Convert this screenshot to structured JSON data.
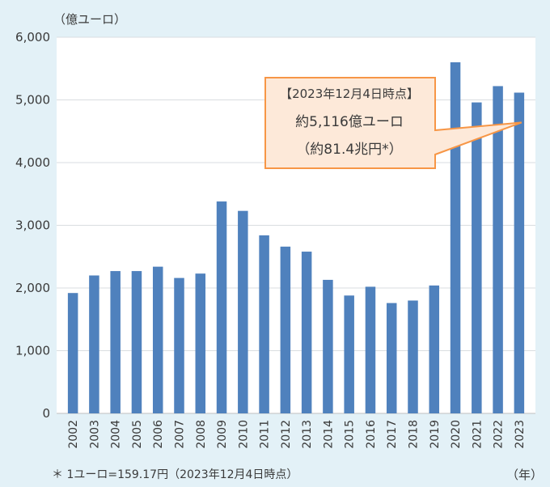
{
  "chart_data": {
    "type": "bar",
    "ylabel": "（億ユーロ）",
    "xlabel": "（年）",
    "categories": [
      "2002",
      "2003",
      "2004",
      "2005",
      "2006",
      "2007",
      "2008",
      "2009",
      "2010",
      "2011",
      "2012",
      "2013",
      "2014",
      "2015",
      "2016",
      "2017",
      "2018",
      "2019",
      "2020",
      "2021",
      "2022",
      "2023"
    ],
    "values": [
      1920,
      2200,
      2270,
      2270,
      2340,
      2160,
      2230,
      3380,
      3230,
      2840,
      2660,
      2580,
      2130,
      1880,
      2020,
      1760,
      1800,
      2040,
      5600,
      4960,
      5220,
      5116
    ],
    "ylim": [
      0,
      6000
    ],
    "yticks": [
      0,
      1000,
      2000,
      3000,
      4000,
      5000,
      6000
    ],
    "ytick_labels": [
      "0",
      "1,000",
      "2,000",
      "3,000",
      "4,000",
      "5,000",
      "6,000"
    ],
    "grid": true,
    "bar_color": "#4f81bd",
    "gridline_color": "#d9dde0",
    "annotation": {
      "line1": "【2023年12月4日時点】",
      "line2": "約5,116億ユーロ",
      "line3": "（約81.4兆円*）",
      "target_category": "2023",
      "target_value": 4640,
      "fill_color": "#fde9d9",
      "border_color": "#f79646"
    },
    "footnote": "＊ 1ユーロ=159.17円（2023年12月4日時点）"
  }
}
